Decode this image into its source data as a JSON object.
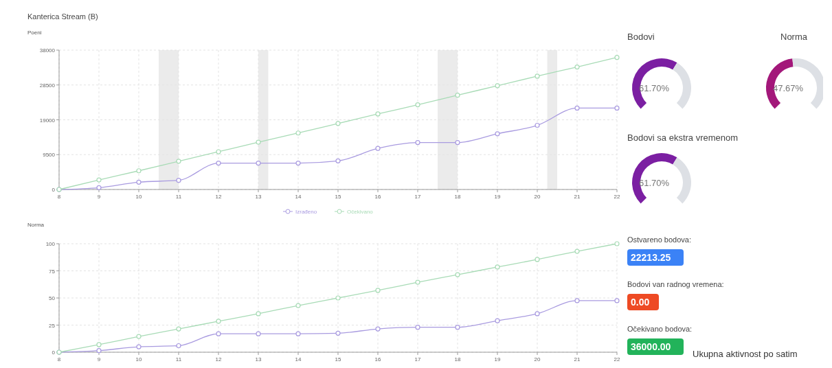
{
  "chart_data": [
    {
      "type": "line",
      "title": "Kanterica Stream (B)",
      "ylabel": "Poeni",
      "x": [
        8,
        9,
        10,
        11,
        12,
        13,
        14,
        15,
        16,
        17,
        18,
        19,
        20,
        21,
        22
      ],
      "xlim": [
        8,
        22
      ],
      "xticks": [
        8,
        9,
        10,
        11,
        12,
        13,
        14,
        15,
        16,
        17,
        18,
        19,
        20,
        21,
        22
      ],
      "ylim": [
        0,
        38000
      ],
      "yticks": [
        0,
        9500,
        19000,
        28500,
        38000
      ],
      "grid": true,
      "marker": "circle",
      "legend": "bottom",
      "series": [
        {
          "name": "Izrađeno",
          "color": "#a99be0",
          "values": [
            0,
            500,
            2000,
            2500,
            7200,
            7200,
            7200,
            7800,
            11200,
            12800,
            12800,
            15200,
            17500,
            22200,
            22200
          ]
        },
        {
          "name": "Očekivano",
          "color": "#a8dbb6",
          "values": [
            0,
            2600,
            5100,
            7700,
            10300,
            12900,
            15400,
            18000,
            20600,
            23100,
            25700,
            28300,
            30900,
            33400,
            36000
          ]
        }
      ],
      "bands": [
        {
          "axis": "x",
          "from": 10.5,
          "to": 11,
          "color": "#ebebeb"
        },
        {
          "axis": "x",
          "from": 13,
          "to": 13.25,
          "color": "#ebebeb"
        },
        {
          "axis": "x",
          "from": 17.5,
          "to": 18,
          "color": "#ebebeb"
        },
        {
          "axis": "x",
          "from": 20.25,
          "to": 20.5,
          "color": "#ebebeb"
        }
      ]
    },
    {
      "type": "line",
      "ylabel": "Norma",
      "x": [
        8,
        9,
        10,
        11,
        12,
        13,
        14,
        15,
        16,
        17,
        18,
        19,
        20,
        21,
        22
      ],
      "xlim": [
        8,
        22
      ],
      "xticks": [
        8,
        9,
        10,
        11,
        12,
        13,
        14,
        15,
        16,
        17,
        18,
        19,
        20,
        21,
        22
      ],
      "ylim": [
        0,
        100
      ],
      "yticks": [
        0,
        25,
        50,
        75,
        100
      ],
      "grid": true,
      "marker": "circle",
      "series": [
        {
          "color": "#a99be0",
          "values": [
            0,
            1.5,
            5,
            6,
            17,
            17,
            17,
            17.5,
            21.5,
            23,
            23,
            29,
            35.5,
            47.5,
            47.5
          ]
        },
        {
          "color": "#a8dbb6",
          "values": [
            0,
            7,
            14.5,
            21.5,
            28.5,
            35.5,
            43,
            50,
            57,
            64.5,
            71.5,
            78.5,
            85.5,
            93,
            100
          ]
        }
      ]
    },
    {
      "type": "donut",
      "title": "Bodovi",
      "categories": [
        null,
        null
      ],
      "values": [
        61.7,
        38.3
      ],
      "colors": [
        "#7b1fa2",
        "#dde0e5"
      ],
      "value_labels": [
        "61.70%",
        null
      ]
    },
    {
      "type": "donut",
      "title": "Norma",
      "categories": [
        null,
        null
      ],
      "values": [
        47.67,
        52.33
      ],
      "colors": [
        "#a3187a",
        "#dde0e5"
      ],
      "value_labels": [
        "47.67%",
        null
      ]
    },
    {
      "type": "donut",
      "title": "Bodovi sa ekstra vremenom",
      "categories": [
        null,
        null
      ],
      "values": [
        61.7,
        38.3
      ],
      "colors": [
        "#7b1fa2",
        "#dde0e5"
      ],
      "value_labels": [
        "61.70%",
        null
      ]
    },
    {
      "type": "other",
      "annotations": [
        "Ostvareno bodova:",
        "22213.25",
        "Bodovi van radnog vremena:",
        "0.00",
        "Očekivano bodova:",
        "36000.00",
        "Ukupna aktivnost po satim"
      ]
    }
  ]
}
